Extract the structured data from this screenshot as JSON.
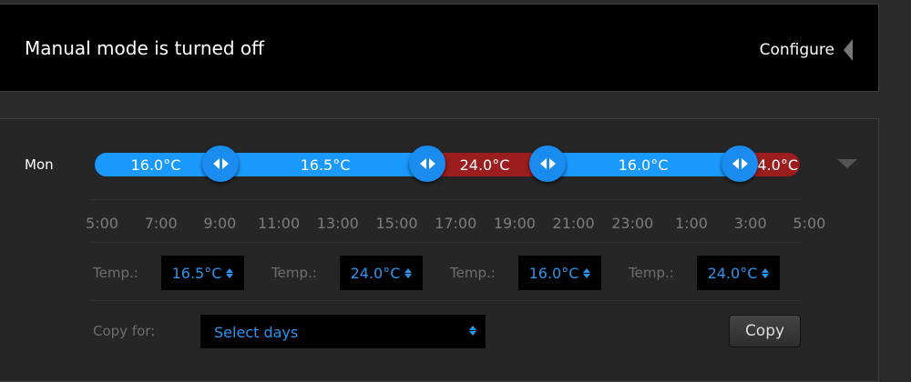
{
  "header": {
    "title": "Manual mode is turned off",
    "configure_label": "Configure"
  },
  "schedule": {
    "day": "Mon",
    "segments": [
      {
        "label": "16.0°C",
        "color": "#1a9aff"
      },
      {
        "label": "16.5°C",
        "color": "#1a9aff"
      },
      {
        "label": "24.0°C",
        "color": "#9b1d1d"
      },
      {
        "label": "16.0°C",
        "color": "#1a9aff"
      },
      {
        "label": "24.0°C",
        "color": "#9b1d1d"
      }
    ],
    "time_labels": [
      "5:00",
      "7:00",
      "9:00",
      "11:00",
      "13:00",
      "15:00",
      "17:00",
      "19:00",
      "21:00",
      "23:00",
      "1:00",
      "3:00",
      "5:00"
    ],
    "temp_label": "Temp.:",
    "temps": [
      "16.5°C",
      "24.0°C",
      "16.0°C",
      "24.0°C"
    ],
    "copy_for_label": "Copy for:",
    "select_value": "Select days",
    "copy_button": "Copy"
  }
}
